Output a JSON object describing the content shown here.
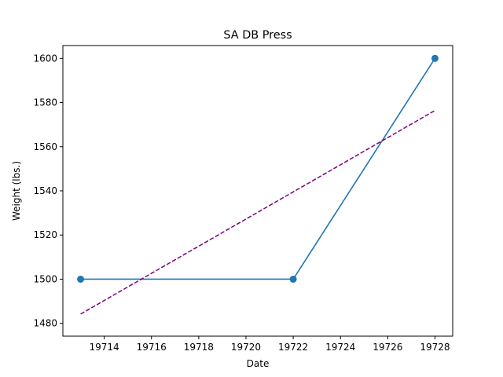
{
  "chart_data": {
    "type": "line",
    "title": "SA DB Press",
    "xlabel": "Date",
    "ylabel": "Weight (lbs.)",
    "xlim": [
      19712.25,
      19728.75
    ],
    "ylim": [
      1474.2,
      1605.8
    ],
    "x_ticks": [
      19714,
      19716,
      19718,
      19720,
      19722,
      19724,
      19726,
      19728
    ],
    "y_ticks": [
      1480,
      1500,
      1520,
      1540,
      1560,
      1580,
      1600
    ],
    "grid": false,
    "series": [
      {
        "x": [
          19713,
          19722,
          19728
        ],
        "y": [
          1500,
          1500,
          1600
        ],
        "color": "#1f77b4",
        "marker": "circle",
        "line_style": "solid"
      },
      {
        "x": [
          19713,
          19728
        ],
        "y": [
          1484.2,
          1576.4
        ],
        "color": "#800080",
        "line_style": "dashed"
      }
    ]
  }
}
